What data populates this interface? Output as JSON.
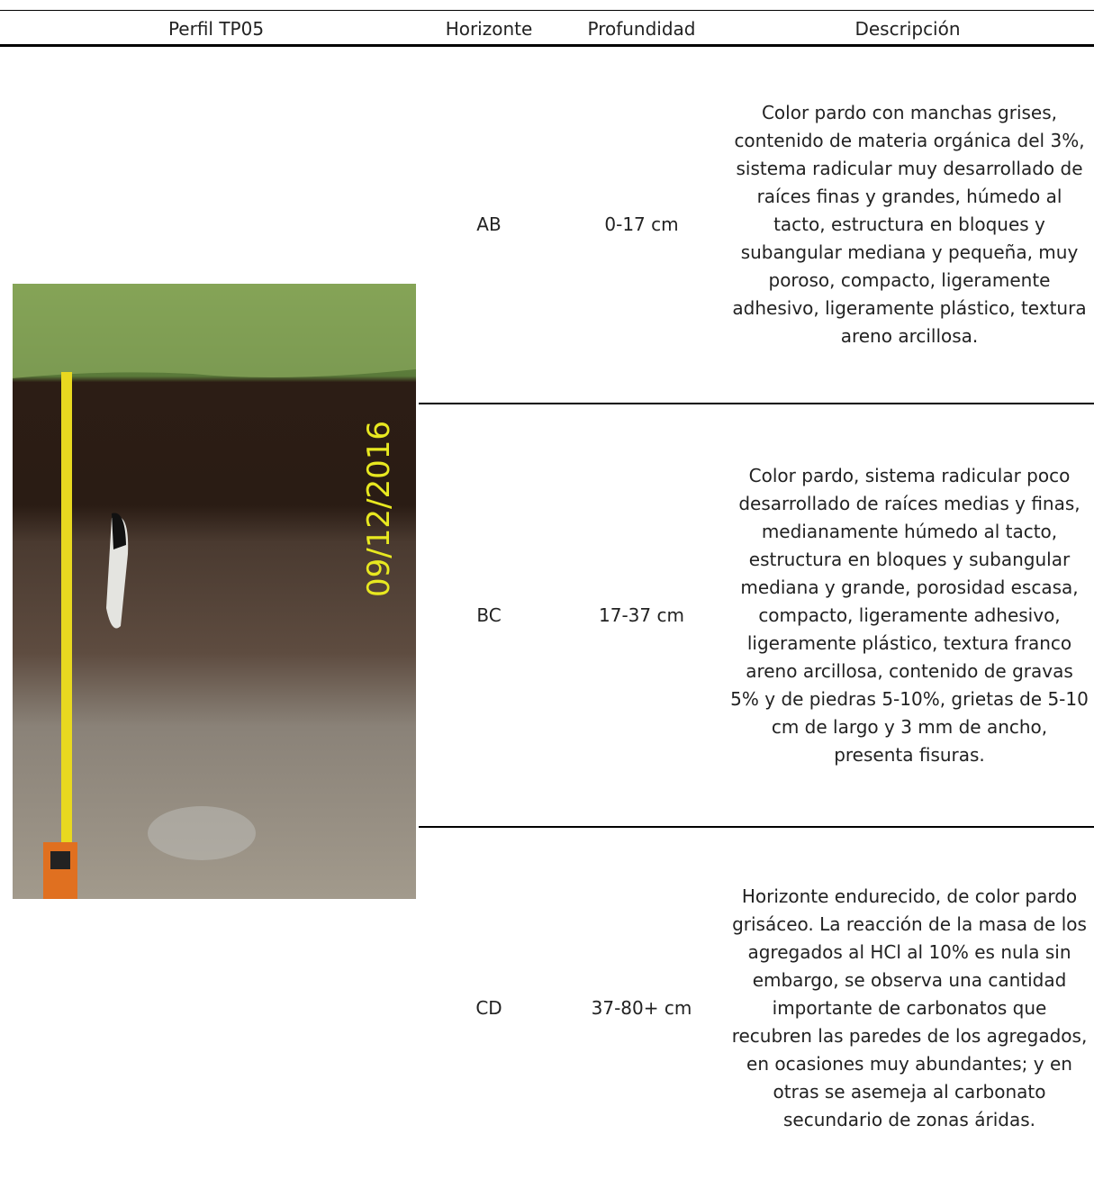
{
  "header": {
    "columns": [
      "Perfil TP05",
      "Horizonte",
      "Profundidad",
      "Descripción"
    ]
  },
  "photo": {
    "date_stamp": "09/12/2016"
  },
  "rows": [
    {
      "horizon": "AB",
      "depth": "0-17 cm",
      "description": "Color pardo con manchas grises, contenido de materia orgánica del 3%, sistema radicular muy desarrollado de raíces finas y grandes, húmedo al tacto, estructura en bloques y subangular mediana y pequeña, muy poroso, compacto, ligeramente adhesivo, ligeramente plástico, textura areno arcillosa."
    },
    {
      "horizon": "BC",
      "depth": "17-37 cm",
      "description": "Color pardo, sistema radicular poco desarrollado de raíces medias y finas, medianamente húmedo al tacto, estructura en bloques y subangular mediana y grande, porosidad escasa, compacto, ligeramente adhesivo, ligeramente plástico, textura franco areno arcillosa, contenido de gravas 5% y de piedras 5-10%, grietas de 5-10 cm de largo y 3 mm de ancho, presenta fisuras."
    },
    {
      "horizon": "CD",
      "depth": "37-80+ cm",
      "description": "Horizonte endurecido, de color pardo grisáceo. La reacción de la masa de los agregados al HCl al 10% es nula sin embargo, se observa una cantidad importante de carbonatos que recubren las paredes de los agregados, en ocasiones muy abundantes; y en otras se asemeja al carbonato secundario de zonas áridas."
    }
  ]
}
